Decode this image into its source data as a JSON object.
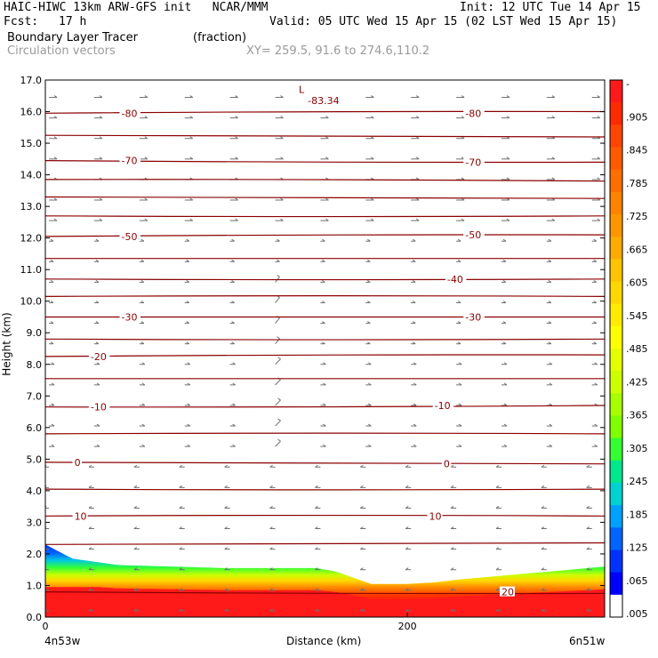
{
  "header": {
    "title": "HAIC-HIWC 13km ARW-GFS init   NCAR/MMM",
    "init": "Init: 12 UTC Tue 14 Apr 15",
    "fcst_label": "Fcst:",
    "fcst_value": "17 h",
    "valid": "Valid: 05 UTC Wed 15 Apr 15 (02 LST Wed 15 Apr 15)",
    "field1_name": "Boundary Layer Tracer",
    "field1_units": "(fraction)",
    "field2_name": "Circulation vectors",
    "xy": "XY= 259.5, 91.6 to 274.6,110.2"
  },
  "chart_data": {
    "type": "heatmap",
    "xlabel": "Distance (km)",
    "ylabel": "Height (km)",
    "ylim": [
      0,
      17
    ],
    "xlim": [
      0,
      309
    ],
    "y_ticks": [
      "0.0",
      "1.0",
      "2.0",
      "3.0",
      "4.0",
      "5.0",
      "6.0",
      "7.0",
      "8.0",
      "9.0",
      "10.0",
      "11.0",
      "12.0",
      "13.0",
      "14.0",
      "15.0",
      "16.0",
      "17.0"
    ],
    "x_ticks": [
      {
        "value": 0,
        "label": "0"
      },
      {
        "value": 200,
        "label": "200"
      }
    ],
    "x_left_label": "4n53w",
    "x_right_label": "6n51w",
    "colorbar": {
      "labels": [
        "-",
        ".905",
        ".845",
        ".785",
        ".725",
        ".665",
        ".605",
        ".545",
        ".485",
        ".425",
        ".365",
        ".305",
        ".245",
        ".185",
        ".125",
        ".065",
        ".005"
      ],
      "colors": [
        "#ff1a1a",
        "#ff2a00",
        "#ff4500",
        "#ff5a00",
        "#ff6e00",
        "#ff8200",
        "#ff9600",
        "#ffaa00",
        "#ffc300",
        "#ffd700",
        "#ffeb00",
        "#ffff00",
        "#e6ff00",
        "#ccff00",
        "#a6ff00",
        "#7fff00",
        "#33ff33",
        "#00e68c",
        "#00d2d2",
        "#00a0ff",
        "#0064ff",
        "#0032ff",
        "#0000ff",
        "#ffffff"
      ]
    },
    "bl_top_km": [
      2.3,
      1.85,
      1.65,
      1.6,
      1.55,
      1.55,
      1.55,
      1.45,
      1.25,
      1.05,
      1.05,
      1.05,
      1.1,
      1.2,
      1.3,
      1.4,
      1.5,
      1.6
    ],
    "bl_x_km": [
      0,
      15,
      40,
      70,
      100,
      130,
      150,
      160,
      170,
      180,
      190,
      200,
      215,
      230,
      250,
      270,
      290,
      309
    ],
    "temperature_contours": [
      {
        "label": "-80",
        "y_left": 15.95,
        "y_right": 16.0
      },
      {
        "label": "",
        "y_left": 15.25,
        "y_right": 15.2
      },
      {
        "label": "-70",
        "y_left": 14.45,
        "y_right": 14.4
      },
      {
        "label": "",
        "y_left": 13.85,
        "y_right": 13.8
      },
      {
        "label": "",
        "y_left": 13.3,
        "y_right": 13.25
      },
      {
        "label": "",
        "y_left": 12.7,
        "y_right": 12.7
      },
      {
        "label": "-50",
        "y_left": 12.05,
        "y_right": 12.1
      },
      {
        "label": "",
        "y_left": 11.35,
        "y_right": 11.35
      },
      {
        "label": "-40",
        "y_left": 10.7,
        "y_right": 10.7
      },
      {
        "label": "",
        "y_left": 10.15,
        "y_right": 10.15
      },
      {
        "label": "-30",
        "y_left": 9.5,
        "y_right": 9.5
      },
      {
        "label": "",
        "y_left": 8.8,
        "y_right": 8.8
      },
      {
        "label": "-20",
        "y_left": 8.25,
        "y_right": 8.3
      },
      {
        "label": "",
        "y_left": 7.55,
        "y_right": 7.55
      },
      {
        "label": "-10",
        "y_left": 6.65,
        "y_right": 6.7
      },
      {
        "label": "",
        "y_left": 5.8,
        "y_right": 5.8
      },
      {
        "label": "0",
        "y_left": 4.9,
        "y_right": 4.85
      },
      {
        "label": "",
        "y_left": 4.05,
        "y_right": 4.05
      },
      {
        "label": "10",
        "y_left": 3.2,
        "y_right": 3.2
      },
      {
        "label": "",
        "y_left": 2.3,
        "y_right": 2.35
      },
      {
        "label": "20",
        "y_left": 0.8,
        "y_right": 0.75
      }
    ],
    "annotations": [
      {
        "text": "L",
        "x_km": 140,
        "y_km": 16.7
      },
      {
        "text": "-83.34",
        "x_km": 145,
        "y_km": 16.35
      },
      {
        "text": "-80",
        "x_km": 42,
        "y_km": 15.95
      },
      {
        "text": "-80",
        "x_km": 232,
        "y_km": 15.95
      },
      {
        "text": "-70",
        "x_km": 42,
        "y_km": 14.45
      },
      {
        "text": "-70",
        "x_km": 232,
        "y_km": 14.4
      },
      {
        "text": "-50",
        "x_km": 42,
        "y_km": 12.05
      },
      {
        "text": "-50",
        "x_km": 232,
        "y_km": 12.1
      },
      {
        "text": "-40",
        "x_km": 222,
        "y_km": 10.7
      },
      {
        "text": "-30",
        "x_km": 42,
        "y_km": 9.5
      },
      {
        "text": "-30",
        "x_km": 232,
        "y_km": 9.5
      },
      {
        "text": "-20",
        "x_km": 25,
        "y_km": 8.25
      },
      {
        "text": "-10",
        "x_km": 25,
        "y_km": 6.65
      },
      {
        "text": "-10",
        "x_km": 215,
        "y_km": 6.7
      },
      {
        "text": "0",
        "x_km": 16,
        "y_km": 4.9
      },
      {
        "text": "0",
        "x_km": 220,
        "y_km": 4.85
      },
      {
        "text": "10",
        "x_km": 16,
        "y_km": 3.2
      },
      {
        "text": "10",
        "x_km": 212,
        "y_km": 3.2
      },
      {
        "text": "20",
        "x_km": 252,
        "y_km": 0.8
      }
    ],
    "contour_color": "#8b0000",
    "vector_color": "#707070"
  }
}
